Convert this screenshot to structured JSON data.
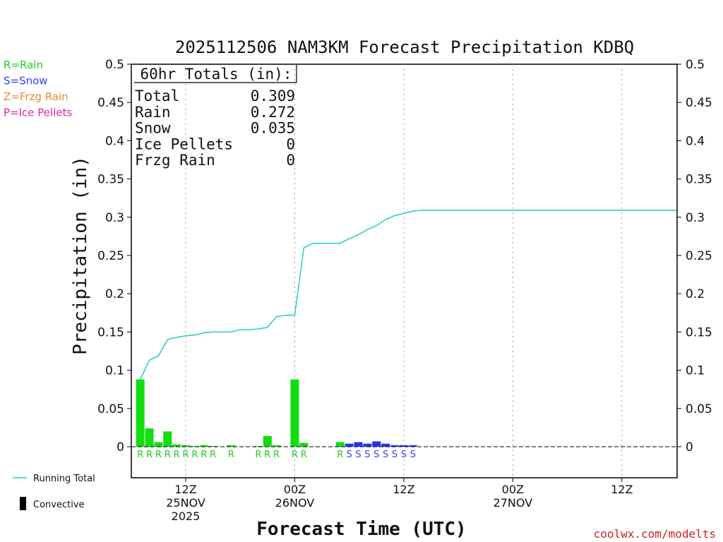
{
  "chart_data": {
    "type": "bar+line",
    "title": "2025112506 NAM3KM Forecast Precipitation KDBQ",
    "xlabel": "Forecast Time (UTC)",
    "ylabel": "Precipitation (in)",
    "ylim": [
      -0.04,
      0.5
    ],
    "yticks": [
      "0.5",
      "0.45",
      "0.4",
      "0.35",
      "0.3",
      "0.25",
      "0.2",
      "0.15",
      "0.1",
      "0.05",
      "0"
    ],
    "xlim": [
      6,
      66
    ],
    "xticks": [
      {
        "hour": 12,
        "line1": "12Z",
        "line2": "25NOV",
        "line3": "2025"
      },
      {
        "hour": 24,
        "line1": "00Z",
        "line2": "26NOV",
        "line3": ""
      },
      {
        "hour": 36,
        "line1": "12Z",
        "line2": "",
        "line3": ""
      },
      {
        "hour": 48,
        "line1": "00Z",
        "line2": "27NOV",
        "line3": ""
      },
      {
        "hour": 60,
        "line1": "12Z",
        "line2": "",
        "line3": ""
      }
    ],
    "bars": [
      {
        "hour": 7,
        "value": 0.088,
        "type": "R"
      },
      {
        "hour": 8,
        "value": 0.024,
        "type": "R"
      },
      {
        "hour": 9,
        "value": 0.006,
        "type": "R"
      },
      {
        "hour": 10,
        "value": 0.02,
        "type": "R"
      },
      {
        "hour": 11,
        "value": 0.003,
        "type": "R"
      },
      {
        "hour": 12,
        "value": 0.002,
        "type": "R"
      },
      {
        "hour": 13,
        "value": 0.001,
        "type": "R"
      },
      {
        "hour": 14,
        "value": 0.002,
        "type": "R"
      },
      {
        "hour": 15,
        "value": 0.001,
        "type": "R"
      },
      {
        "hour": 17,
        "value": 0.002,
        "type": "R"
      },
      {
        "hour": 20,
        "value": 0.001,
        "type": "R"
      },
      {
        "hour": 21,
        "value": 0.014,
        "type": "R"
      },
      {
        "hour": 22,
        "value": 0.002,
        "type": "R"
      },
      {
        "hour": 24,
        "value": 0.088,
        "type": "R"
      },
      {
        "hour": 25,
        "value": 0.005,
        "type": "R"
      },
      {
        "hour": 29,
        "value": 0.006,
        "type": "R"
      },
      {
        "hour": 30,
        "value": 0.004,
        "type": "S"
      },
      {
        "hour": 31,
        "value": 0.006,
        "type": "S"
      },
      {
        "hour": 32,
        "value": 0.004,
        "type": "S"
      },
      {
        "hour": 33,
        "value": 0.007,
        "type": "S"
      },
      {
        "hour": 34,
        "value": 0.004,
        "type": "S"
      },
      {
        "hour": 35,
        "value": 0.002,
        "type": "S"
      },
      {
        "hour": 36,
        "value": 0.002,
        "type": "S"
      },
      {
        "hour": 37,
        "value": 0.002,
        "type": "S"
      }
    ],
    "running_total": {
      "hours": [
        7,
        8,
        9,
        10,
        11,
        12,
        13,
        14,
        15,
        16,
        17,
        18,
        19,
        20,
        21,
        22,
        23,
        24,
        25,
        26,
        27,
        28,
        29,
        30,
        31,
        32,
        33,
        34,
        35,
        36,
        37,
        38,
        66
      ],
      "values": [
        0.088,
        0.113,
        0.119,
        0.14,
        0.143,
        0.145,
        0.146,
        0.149,
        0.15,
        0.15,
        0.15,
        0.153,
        0.153,
        0.154,
        0.156,
        0.17,
        0.172,
        0.172,
        0.26,
        0.266,
        0.266,
        0.266,
        0.266,
        0.272,
        0.277,
        0.284,
        0.289,
        0.297,
        0.302,
        0.305,
        0.308,
        0.309,
        0.309
      ]
    },
    "totals_box": {
      "title": "60hr Totals (in):",
      "rows": [
        {
          "label": "Total",
          "value": "0.309"
        },
        {
          "label": "Rain",
          "value": "0.272"
        },
        {
          "label": "Snow",
          "value": "0.035"
        },
        {
          "label": "Ice Pellets",
          "value": "0"
        },
        {
          "label": "Frzg Rain",
          "value": "0"
        }
      ]
    },
    "type_legend": [
      {
        "text": "R=Rain",
        "color": "#22cc22"
      },
      {
        "text": "S=Snow",
        "color": "#3344ee"
      },
      {
        "text": "Z=Frzg Rain",
        "color": "#ee8833"
      },
      {
        "text": "P=Ice Pellets",
        "color": "#ee2299"
      }
    ],
    "series_legend": {
      "running_total": "Running Total",
      "convective": "Convective"
    },
    "colors": {
      "R": "#11dd11",
      "S": "#2233ee",
      "line": "#22cccc",
      "rain_text": "#22cc22",
      "snow_text": "#3344ee",
      "credit": "#cc2222"
    },
    "credit": "coolwx.com/modelts"
  }
}
